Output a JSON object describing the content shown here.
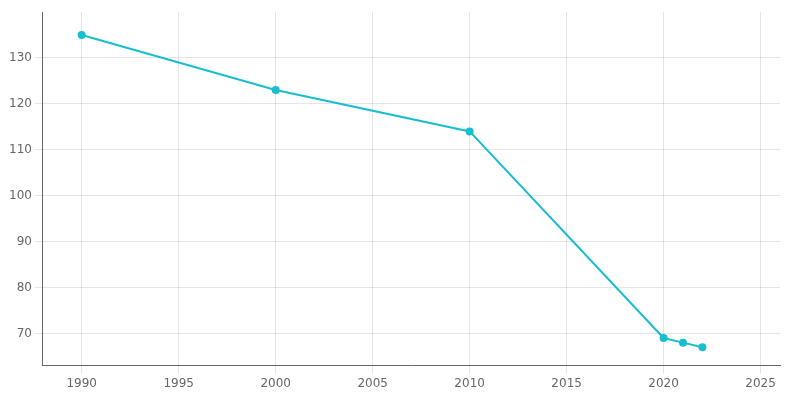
{
  "chart_data": {
    "type": "line",
    "x": [
      1990,
      2000,
      2010,
      2020,
      2021,
      2022
    ],
    "values": [
      135,
      123,
      114,
      69,
      68,
      67
    ],
    "color": "#17becf",
    "marker": "o",
    "xlim": [
      1988,
      2026
    ],
    "ylim": [
      63,
      140
    ],
    "xticks": [
      1990,
      1995,
      2000,
      2005,
      2010,
      2015,
      2020,
      2025
    ],
    "yticks": [
      70,
      80,
      90,
      100,
      110,
      120,
      130
    ],
    "grid": true
  }
}
